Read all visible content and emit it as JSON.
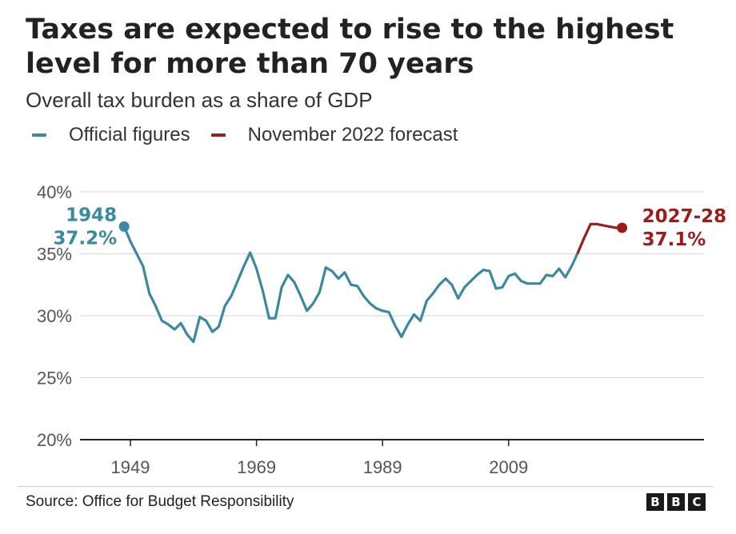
{
  "header": {
    "title": "Taxes are expected to rise to the highest level for more than 70 years",
    "subtitle": "Overall tax burden as a share of GDP"
  },
  "legend": [
    {
      "label": "Official figures",
      "color": "#3a89a0"
    },
    {
      "label": "November 2022 forecast",
      "color": "#9e1b1b"
    }
  ],
  "footer": {
    "source": "Source: Office for Budget Responsibility",
    "logo": [
      "B",
      "B",
      "C"
    ]
  },
  "chart_data": {
    "type": "line",
    "title": "Taxes are expected to rise to the highest level for more than 70 years",
    "subtitle": "Overall tax burden as a share of GDP",
    "xlabel": "",
    "ylabel": "",
    "x_ticks": [
      "1949",
      "1969",
      "1989",
      "2009"
    ],
    "y_ticks": [
      "40%",
      "35%",
      "30%",
      "25%",
      "20%"
    ],
    "ylim": [
      20,
      40
    ],
    "xlim": [
      1941,
      2040
    ],
    "grid": true,
    "legend_position": "top-left",
    "series": [
      {
        "name": "Official figures",
        "color": "#3a89a0",
        "points": [
          [
            1948,
            37.2
          ],
          [
            1949,
            36.0
          ],
          [
            1950,
            35.0
          ],
          [
            1951,
            34.0
          ],
          [
            1952,
            31.8
          ],
          [
            1953,
            30.8
          ],
          [
            1954,
            29.6
          ],
          [
            1955,
            29.3
          ],
          [
            1956,
            28.9
          ],
          [
            1957,
            29.4
          ],
          [
            1958,
            28.5
          ],
          [
            1959,
            27.9
          ],
          [
            1960,
            29.9
          ],
          [
            1961,
            29.6
          ],
          [
            1962,
            28.7
          ],
          [
            1963,
            29.1
          ],
          [
            1964,
            30.8
          ],
          [
            1965,
            31.6
          ],
          [
            1966,
            32.8
          ],
          [
            1967,
            34.0
          ],
          [
            1968,
            35.1
          ],
          [
            1969,
            33.8
          ],
          [
            1970,
            32.0
          ],
          [
            1971,
            29.8
          ],
          [
            1972,
            29.8
          ],
          [
            1973,
            32.3
          ],
          [
            1974,
            33.3
          ],
          [
            1975,
            32.7
          ],
          [
            1976,
            31.6
          ],
          [
            1977,
            30.4
          ],
          [
            1978,
            31.0
          ],
          [
            1979,
            31.9
          ],
          [
            1980,
            33.9
          ],
          [
            1981,
            33.6
          ],
          [
            1982,
            33.0
          ],
          [
            1983,
            33.5
          ],
          [
            1984,
            32.5
          ],
          [
            1985,
            32.4
          ],
          [
            1986,
            31.6
          ],
          [
            1987,
            31.0
          ],
          [
            1988,
            30.6
          ],
          [
            1989,
            30.4
          ],
          [
            1990,
            30.3
          ],
          [
            1991,
            29.2
          ],
          [
            1992,
            28.3
          ],
          [
            1993,
            29.3
          ],
          [
            1994,
            30.1
          ],
          [
            1995,
            29.6
          ],
          [
            1996,
            31.2
          ],
          [
            1997,
            31.8
          ],
          [
            1998,
            32.5
          ],
          [
            1999,
            33.0
          ],
          [
            2000,
            32.5
          ],
          [
            2001,
            31.4
          ],
          [
            2002,
            32.3
          ],
          [
            2003,
            32.8
          ],
          [
            2004,
            33.3
          ],
          [
            2005,
            33.7
          ],
          [
            2006,
            33.6
          ],
          [
            2007,
            32.2
          ],
          [
            2008,
            32.3
          ],
          [
            2009,
            33.2
          ],
          [
            2010,
            33.4
          ],
          [
            2011,
            32.8
          ],
          [
            2012,
            32.6
          ],
          [
            2013,
            32.6
          ],
          [
            2014,
            32.6
          ],
          [
            2015,
            33.3
          ],
          [
            2016,
            33.2
          ],
          [
            2017,
            33.8
          ],
          [
            2018,
            33.1
          ],
          [
            2019,
            34.0
          ],
          [
            2020,
            35.1
          ]
        ]
      },
      {
        "name": "November 2022 forecast",
        "color": "#9e1b1b",
        "points": [
          [
            2020,
            35.1
          ],
          [
            2021,
            36.3
          ],
          [
            2022,
            37.4
          ],
          [
            2023,
            37.4
          ],
          [
            2024,
            37.3
          ],
          [
            2025,
            37.2
          ],
          [
            2026,
            37.1
          ],
          [
            2027,
            37.1
          ]
        ]
      }
    ],
    "annotations": [
      {
        "x": 1948,
        "y": 37.2,
        "line1": "1948",
        "line2": "37.2%",
        "color": "#3a89a0",
        "side": "left"
      },
      {
        "x": 2027,
        "y": 37.1,
        "line1": "2027-28",
        "line2": "37.1%",
        "color": "#9e1b1b",
        "side": "right"
      }
    ]
  }
}
